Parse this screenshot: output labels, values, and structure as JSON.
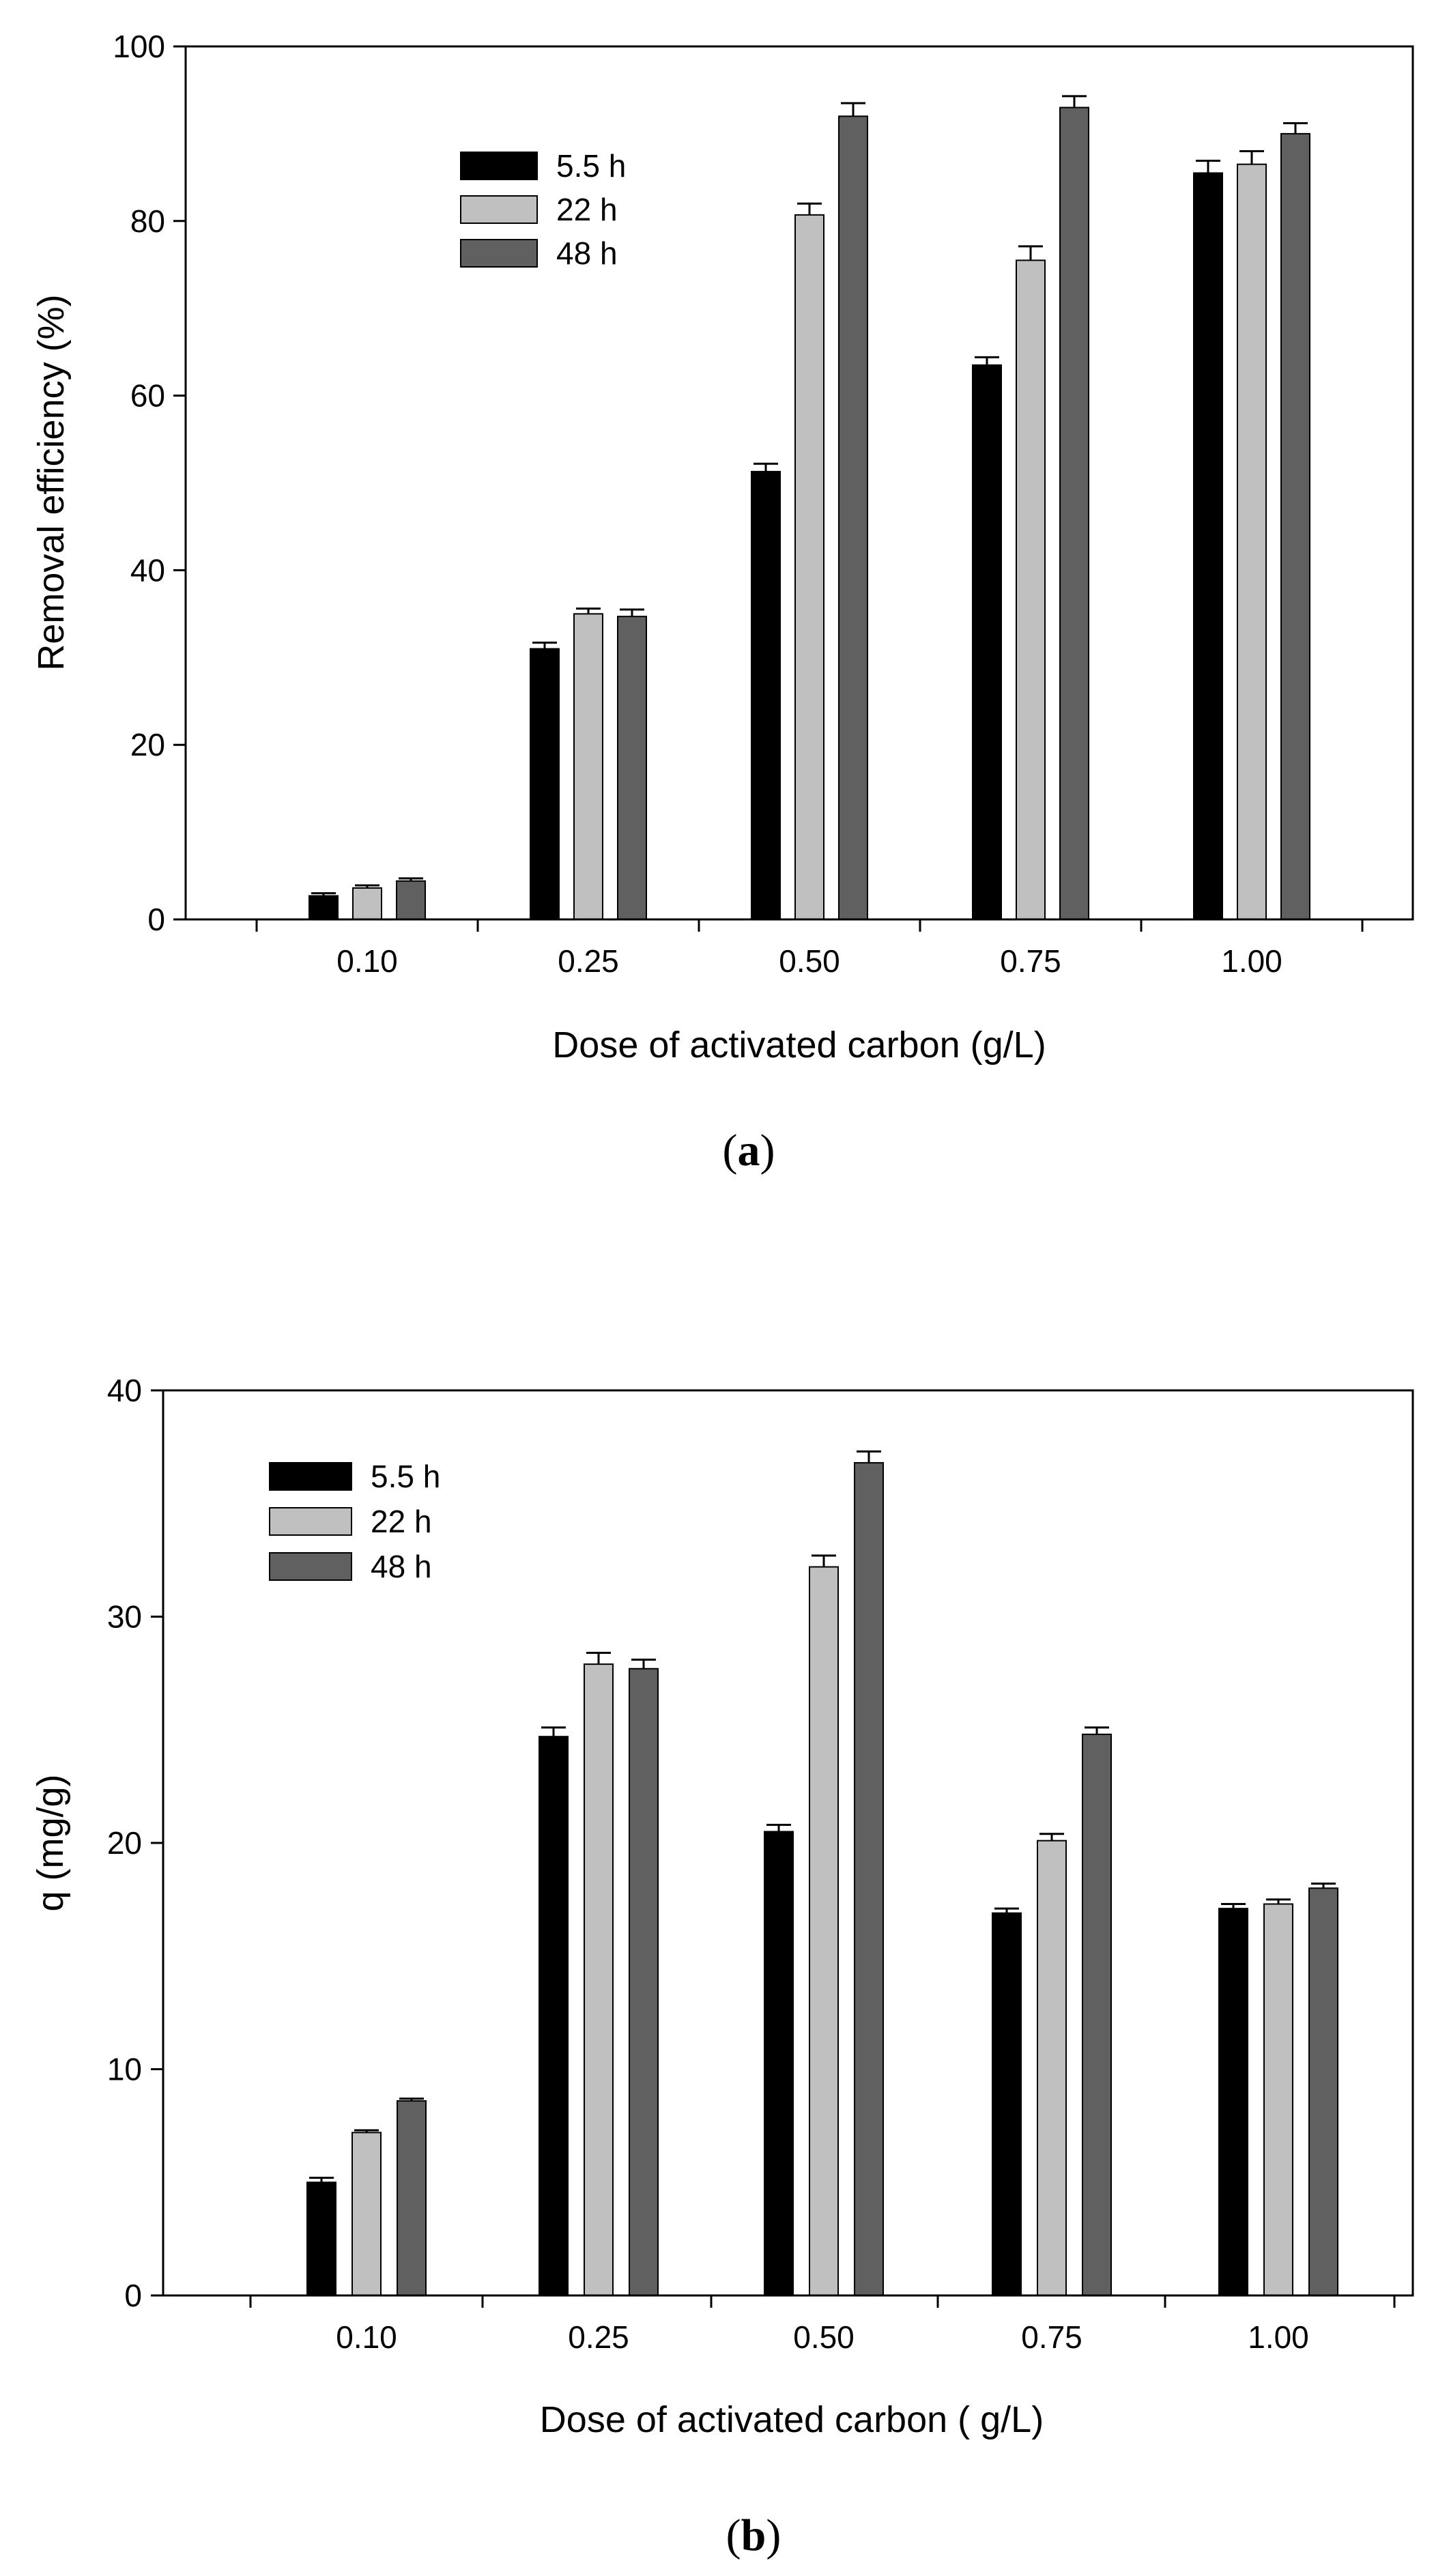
{
  "chart_data": [
    {
      "type": "bar",
      "panel": "a",
      "panel_label": {
        "open": "(",
        "letter": "a",
        "close": ")"
      },
      "categories": [
        "0.10",
        "0.25",
        "0.50",
        "0.75",
        "1.00"
      ],
      "series": [
        {
          "name": "5.5 h",
          "color": "#000000",
          "values": [
            2.7,
            31.0,
            51.3,
            63.5,
            85.5
          ],
          "errors": [
            0.3,
            0.7,
            0.9,
            0.9,
            1.4
          ]
        },
        {
          "name": "22 h",
          "color": "#c0c0c0",
          "values": [
            3.6,
            35.0,
            80.7,
            75.5,
            86.5
          ],
          "errors": [
            0.3,
            0.6,
            1.3,
            1.6,
            1.5
          ]
        },
        {
          "name": "48 h",
          "color": "#606060",
          "values": [
            4.4,
            34.7,
            92.0,
            93.0,
            90.0
          ],
          "errors": [
            0.3,
            0.8,
            1.5,
            1.3,
            1.2
          ]
        }
      ],
      "xlabel": "Dose of activated carbon (g/L)",
      "ylabel": "Removal efficiency (%)",
      "ylim": [
        0,
        100
      ],
      "yticks": [
        "0",
        "20",
        "40",
        "60",
        "80",
        "100"
      ],
      "legend_position": "top-left"
    },
    {
      "type": "bar",
      "panel": "b",
      "panel_label": {
        "open": "(",
        "letter": "b",
        "close": ")"
      },
      "categories": [
        "0.10",
        "0.25",
        "0.50",
        "0.75",
        "1.00"
      ],
      "series": [
        {
          "name": "5.5 h",
          "color": "#000000",
          "values": [
            5.0,
            24.7,
            20.5,
            16.9,
            17.1
          ],
          "errors": [
            0.2,
            0.4,
            0.3,
            0.2,
            0.2
          ]
        },
        {
          "name": "22 h",
          "color": "#c0c0c0",
          "values": [
            7.2,
            27.9,
            32.2,
            20.1,
            17.3
          ],
          "errors": [
            0.1,
            0.5,
            0.5,
            0.3,
            0.2
          ]
        },
        {
          "name": "48 h",
          "color": "#606060",
          "values": [
            8.6,
            27.7,
            36.8,
            24.8,
            18.0
          ],
          "errors": [
            0.1,
            0.4,
            0.5,
            0.3,
            0.2
          ]
        }
      ],
      "xlabel": "Dose of activated carbon ( g/L)",
      "ylabel": "q (mg/g)",
      "ylim": [
        0,
        40
      ],
      "yticks": [
        "0",
        "10",
        "20",
        "30",
        "40"
      ],
      "legend_position": "top-left"
    }
  ]
}
